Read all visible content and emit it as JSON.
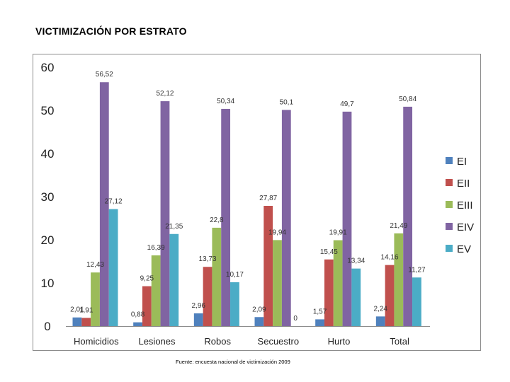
{
  "page": {
    "title": "VICTIMIZACIÓN POR ESTRATO",
    "source": "Fuente: encuesta nacional de victimización 2009"
  },
  "chart_data": {
    "type": "bar",
    "title": "",
    "xlabel": "",
    "ylabel": "",
    "ylim": [
      0,
      60
    ],
    "yticks": [
      0,
      10,
      20,
      30,
      40,
      50,
      60
    ],
    "grid": false,
    "legend_position": "right",
    "categories": [
      "Homicidios",
      "Lesiones",
      "Robos",
      "Secuestro",
      "Hurto",
      "Total"
    ],
    "series": [
      {
        "name": "EI",
        "color": "#4f81bd",
        "values": [
          2.01,
          0.88,
          2.96,
          2.09,
          1.57,
          2.24
        ],
        "labels": [
          "2,01",
          "0,88",
          "2,96",
          "2,09",
          "1,57",
          "2,24"
        ]
      },
      {
        "name": "EII",
        "color": "#c0504d",
        "values": [
          1.91,
          9.25,
          13.73,
          27.87,
          15.45,
          14.16
        ],
        "labels": [
          "1,91",
          "9,25",
          "13,73",
          "27,87",
          "15,45",
          "14,16"
        ]
      },
      {
        "name": "EIII",
        "color": "#9bbb59",
        "values": [
          12.43,
          16.39,
          22.8,
          19.94,
          19.91,
          21.49
        ],
        "labels": [
          "12,43",
          "16,39",
          "22,8",
          "19,94",
          "19,91",
          "21,49"
        ]
      },
      {
        "name": "EIV",
        "color": "#8064a2",
        "values": [
          56.52,
          52.12,
          50.34,
          50.1,
          49.7,
          50.84
        ],
        "labels": [
          "56,52",
          "52,12",
          "50,34",
          "50,1",
          "49,7",
          "50,84"
        ]
      },
      {
        "name": "EV",
        "color": "#4bacc6",
        "values": [
          27.12,
          21.35,
          10.17,
          0,
          13.34,
          11.27
        ],
        "labels": [
          "27,12",
          "21,35",
          "10,17",
          "0",
          "13,34",
          "11,27"
        ]
      }
    ]
  }
}
